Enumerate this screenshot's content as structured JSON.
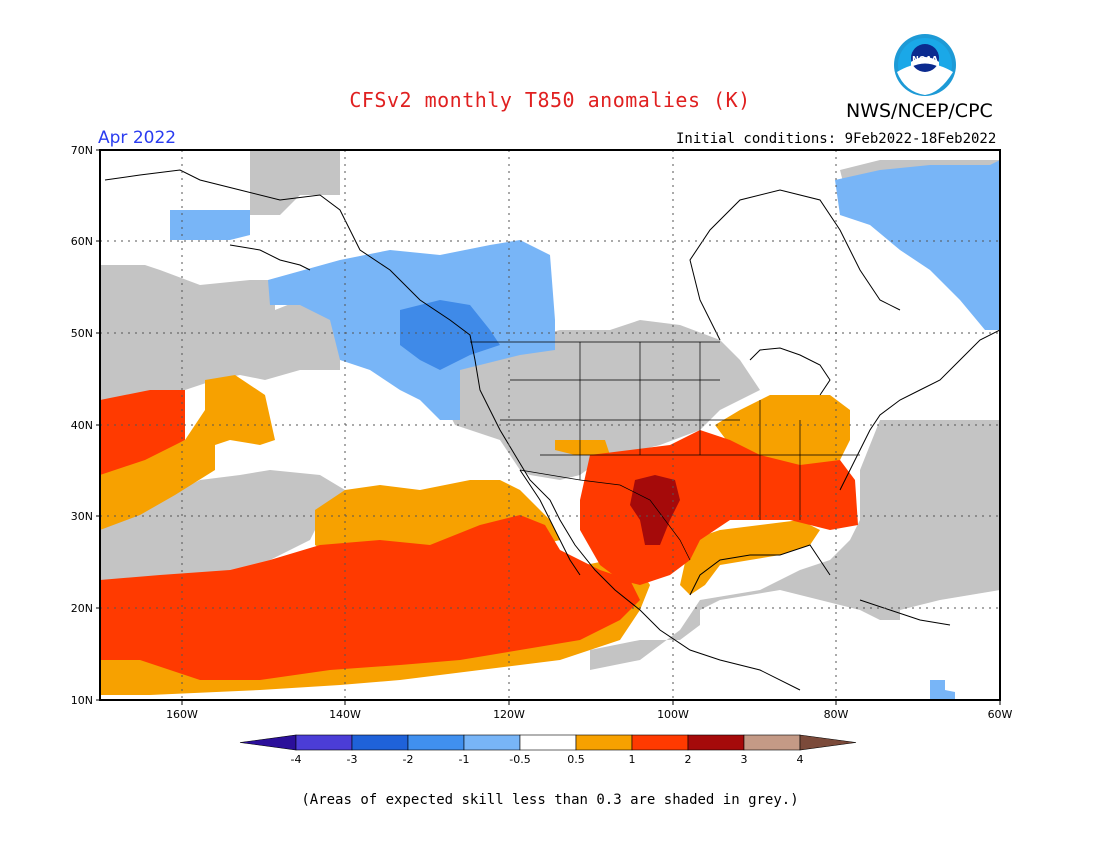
{
  "title": "CFSv2 monthly T850 anomalies (K)",
  "agency": "NWS/NCEP/CPC",
  "logo_text": "NOAA",
  "month_label": "Apr 2022",
  "initial_conditions": "Initial conditions: 9Feb2022-18Feb2022",
  "footnote": "(Areas of expected skill less than 0.3 are shaded in grey.)",
  "map": {
    "lat_labels": [
      "70N",
      "60N",
      "50N",
      "40N",
      "30N",
      "20N",
      "10N"
    ],
    "lon_labels": [
      "160W",
      "140W",
      "120W",
      "100W",
      "80W",
      "60W"
    ],
    "lat_range": [
      10,
      70
    ],
    "lon_range": [
      -170,
      -60
    ],
    "regions": [
      {
        "name": "grey-pacific-north",
        "category": "low-skill"
      },
      {
        "name": "grey-pacific-central",
        "category": "low-skill"
      },
      {
        "name": "grey-west-us",
        "category": "low-skill"
      },
      {
        "name": "grey-central-america",
        "category": "low-skill"
      },
      {
        "name": "grey-atlantic",
        "category": "low-skill"
      },
      {
        "name": "blue-alaska",
        "category": "-1 to -0.5"
      },
      {
        "name": "blue-bc",
        "category": "-2 to -1"
      },
      {
        "name": "blue-labrador",
        "category": "-1 to -0.5"
      },
      {
        "name": "orange-pacific",
        "category": "0.5 to 1"
      },
      {
        "name": "orange-ohio-valley",
        "category": "0.5 to 1"
      },
      {
        "name": "red-pacific-band",
        "category": "1 to 2"
      },
      {
        "name": "red-pacific-nw-corner",
        "category": "1 to 2"
      },
      {
        "name": "red-south-us",
        "category": "1 to 2"
      },
      {
        "name": "darkred-texas",
        "category": "2 to 3"
      }
    ]
  },
  "legend": {
    "colors": [
      "#2b0f9a",
      "#4b3dd6",
      "#1f62d9",
      "#4090ef",
      "#78b5f7",
      "#ffffff",
      "#f7a100",
      "#ff3a00",
      "#a50a0a",
      "#c49a86",
      "#7b4a3a"
    ],
    "labels": [
      "-4",
      "-3",
      "-2",
      "-1",
      "-0.5",
      "0.5",
      "1",
      "2",
      "3",
      "4"
    ]
  }
}
